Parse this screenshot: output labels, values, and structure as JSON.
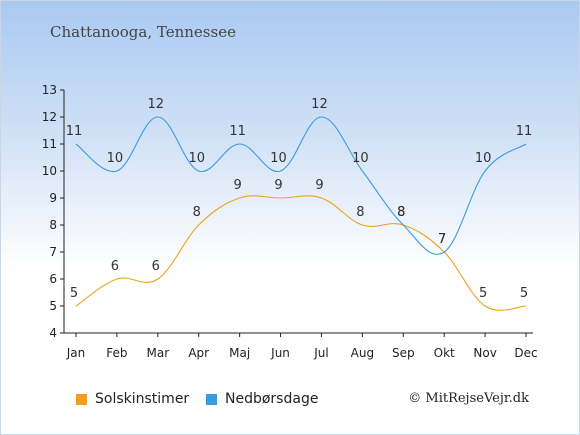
{
  "title": "Chattanooga, Tennessee",
  "credit": "© MitRejseVejr.dk",
  "chart_data": {
    "type": "line",
    "categories": [
      "Jan",
      "Feb",
      "Mar",
      "Apr",
      "Maj",
      "Jun",
      "Jul",
      "Aug",
      "Sep",
      "Okt",
      "Nov",
      "Dec"
    ],
    "ylim": [
      4,
      13
    ],
    "yticks": [
      4,
      5,
      6,
      7,
      8,
      9,
      10,
      11,
      12,
      13
    ],
    "grid": false,
    "legend_position": "bottom",
    "series": [
      {
        "name": "Solskinstimer",
        "color": "#f0a01e",
        "values": [
          5,
          6,
          6,
          8,
          9,
          9,
          9,
          8,
          8,
          7,
          5,
          5
        ]
      },
      {
        "name": "Nedbørsdage",
        "color": "#3a9ae0",
        "values": [
          11,
          10,
          12,
          10,
          11,
          10,
          12,
          10,
          8,
          7,
          10,
          11
        ]
      }
    ]
  }
}
